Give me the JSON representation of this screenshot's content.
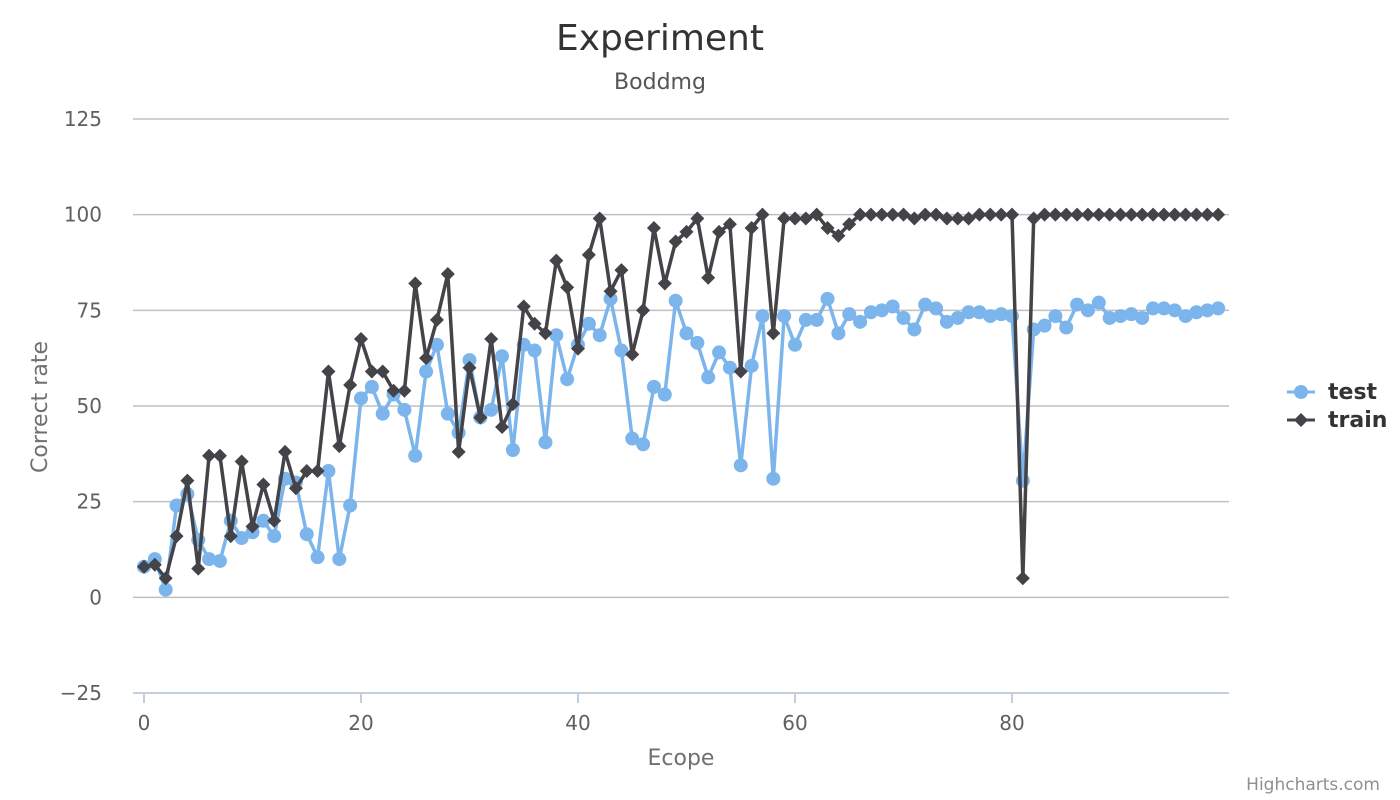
{
  "colors": {
    "test": "#7cb5ec",
    "train": "#434348",
    "grid": "#c0c0c0",
    "xaxis": "#c0d0e0"
  },
  "credits": "Highcharts.com",
  "chart_data": {
    "type": "line",
    "title": "Experiment",
    "subtitle": "Boddmg",
    "xlabel": "Ecope",
    "ylabel": "Correct rate",
    "xlim": [
      -0.5,
      99.5
    ],
    "ylim": [
      -25,
      125
    ],
    "yticks": [
      -25,
      0,
      25,
      50,
      75,
      100,
      125
    ],
    "ytick_labels": [
      "−25",
      "0",
      "25",
      "50",
      "75",
      "100",
      "125"
    ],
    "xticks": [
      0,
      20,
      40,
      60,
      80
    ],
    "xtick_labels": [
      "0",
      "20",
      "40",
      "60",
      "80"
    ],
    "grid": true,
    "legend_position": "right",
    "series": [
      {
        "name": "test",
        "marker": "circle",
        "values": [
          8,
          10,
          2,
          24,
          27,
          15,
          10,
          9.5,
          20,
          15.5,
          17,
          20,
          16,
          31,
          30,
          16.5,
          10.5,
          33,
          10,
          24,
          52,
          55,
          48,
          53,
          49,
          37,
          59,
          66,
          48,
          43,
          62,
          47,
          49,
          63,
          38.5,
          66,
          64.5,
          40.5,
          68.5,
          57,
          66,
          71.5,
          68.5,
          78,
          64.5,
          41.5,
          40,
          55,
          53,
          77.5,
          69,
          66.5,
          57.5,
          64,
          60,
          34.5,
          60.5,
          73.5,
          31,
          73.5,
          66,
          72.5,
          72.5,
          78,
          69,
          74,
          72,
          74.5,
          75,
          76,
          73,
          70,
          76.5,
          75.5,
          72,
          73,
          74.5,
          74.5,
          73.5,
          74,
          73.5,
          30.5,
          70,
          71,
          73.5,
          70.5,
          76.5,
          75,
          77,
          73,
          73.5,
          74,
          73,
          75.5,
          75.5,
          75,
          73.5,
          74.5,
          75,
          75.5
        ]
      },
      {
        "name": "train",
        "marker": "diamond",
        "values": [
          8,
          8.5,
          5,
          16,
          30.5,
          7.5,
          37,
          37,
          16,
          35.5,
          18.5,
          29.5,
          20,
          38,
          28.5,
          33,
          33,
          59,
          39.5,
          55.5,
          67.5,
          59,
          59,
          54,
          54,
          82,
          62.5,
          72.5,
          84.5,
          38,
          60,
          47,
          67.5,
          44.5,
          50.5,
          76,
          71.5,
          69,
          88,
          81,
          65,
          89.5,
          99,
          80,
          85.5,
          63.5,
          75,
          96.5,
          82,
          93,
          95.5,
          99,
          83.5,
          95.5,
          97.5,
          59,
          96.5,
          100,
          69,
          99,
          99,
          99,
          100,
          96.5,
          94.5,
          97.5,
          100,
          100,
          100,
          100,
          100,
          99,
          100,
          100,
          99,
          99,
          99,
          100,
          100,
          100,
          100,
          5,
          99,
          100,
          100,
          100,
          100,
          100,
          100,
          100,
          100,
          100,
          100,
          100,
          100,
          100,
          100,
          100,
          100,
          100
        ]
      }
    ]
  }
}
